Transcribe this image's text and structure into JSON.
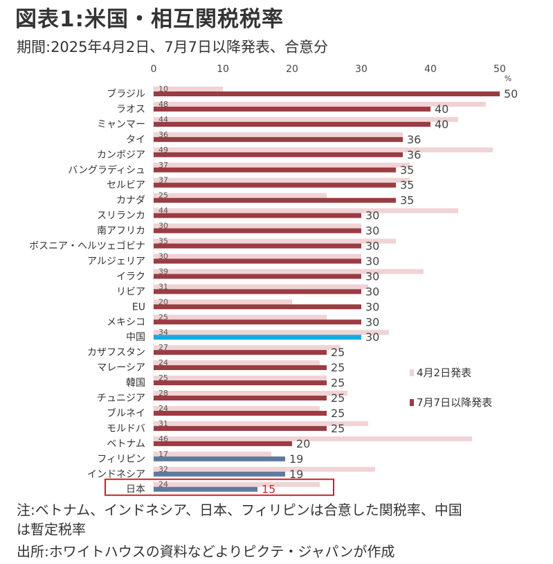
{
  "header": {
    "title": "図表1:米国・相互関税税率",
    "subtitle": "期間:2025年4月2日、7月7日以降発表、合意分"
  },
  "chart_data": {
    "type": "bar",
    "orientation": "horizontal",
    "title": "図表1:米国・相互関税税率",
    "subtitle": "期間:2025年4月2日、7月7日以降発表、合意分",
    "xlabel": "",
    "ylabel": "",
    "unit": "%",
    "xlim": [
      0,
      50
    ],
    "xticks": [
      0,
      10,
      20,
      30,
      40,
      50
    ],
    "grid": false,
    "legend_position": "right",
    "categories": [
      "ブラジル",
      "ラオス",
      "ミャンマー",
      "タイ",
      "カンボジア",
      "バングラディシュ",
      "セルビア",
      "カナダ",
      "スリランカ",
      "南アフリカ",
      "ボスニア・ヘルツェゴビナ",
      "アルジェリア",
      "イラク",
      "リビア",
      "EU",
      "メキシコ",
      "中国",
      "カザフスタン",
      "マレーシア",
      "韓国",
      "チュニジア",
      "ブルネイ",
      "モルドバ",
      "ベトナム",
      "フィリピン",
      "インドネシア",
      "日本"
    ],
    "series": [
      {
        "name": "4月2日発表",
        "color": "#f0d3d5",
        "values": [
          10,
          48,
          44,
          36,
          49,
          37,
          37,
          25,
          44,
          30,
          35,
          30,
          39,
          31,
          20,
          25,
          34,
          27,
          24,
          25,
          28,
          24,
          31,
          46,
          17,
          32,
          24
        ]
      },
      {
        "name": "7月7日以降発表",
        "color": "#9b3b42",
        "values": [
          50,
          40,
          40,
          36,
          36,
          35,
          35,
          35,
          30,
          30,
          30,
          30,
          30,
          30,
          30,
          30,
          30,
          25,
          25,
          25,
          25,
          25,
          25,
          20,
          19,
          19,
          15
        ]
      }
    ],
    "bar_colors_override": {
      "中国": "#1aa9e0",
      "フィリピン": "#5d7a9e",
      "インドネシア": "#5d7a9e",
      "日本": "#5d7a9e"
    },
    "highlight": {
      "category": "日本",
      "box_color": "#cc1f24",
      "label_color": "#cc2a2e"
    }
  },
  "notes": {
    "line1": "注:ベトナム、インドネシア、日本、フィリピンは合意した関税率、中国",
    "line2": "は暫定税率",
    "source": "出所:ホワイトハウスの資料などよりピクテ・ジャパンが作成"
  }
}
